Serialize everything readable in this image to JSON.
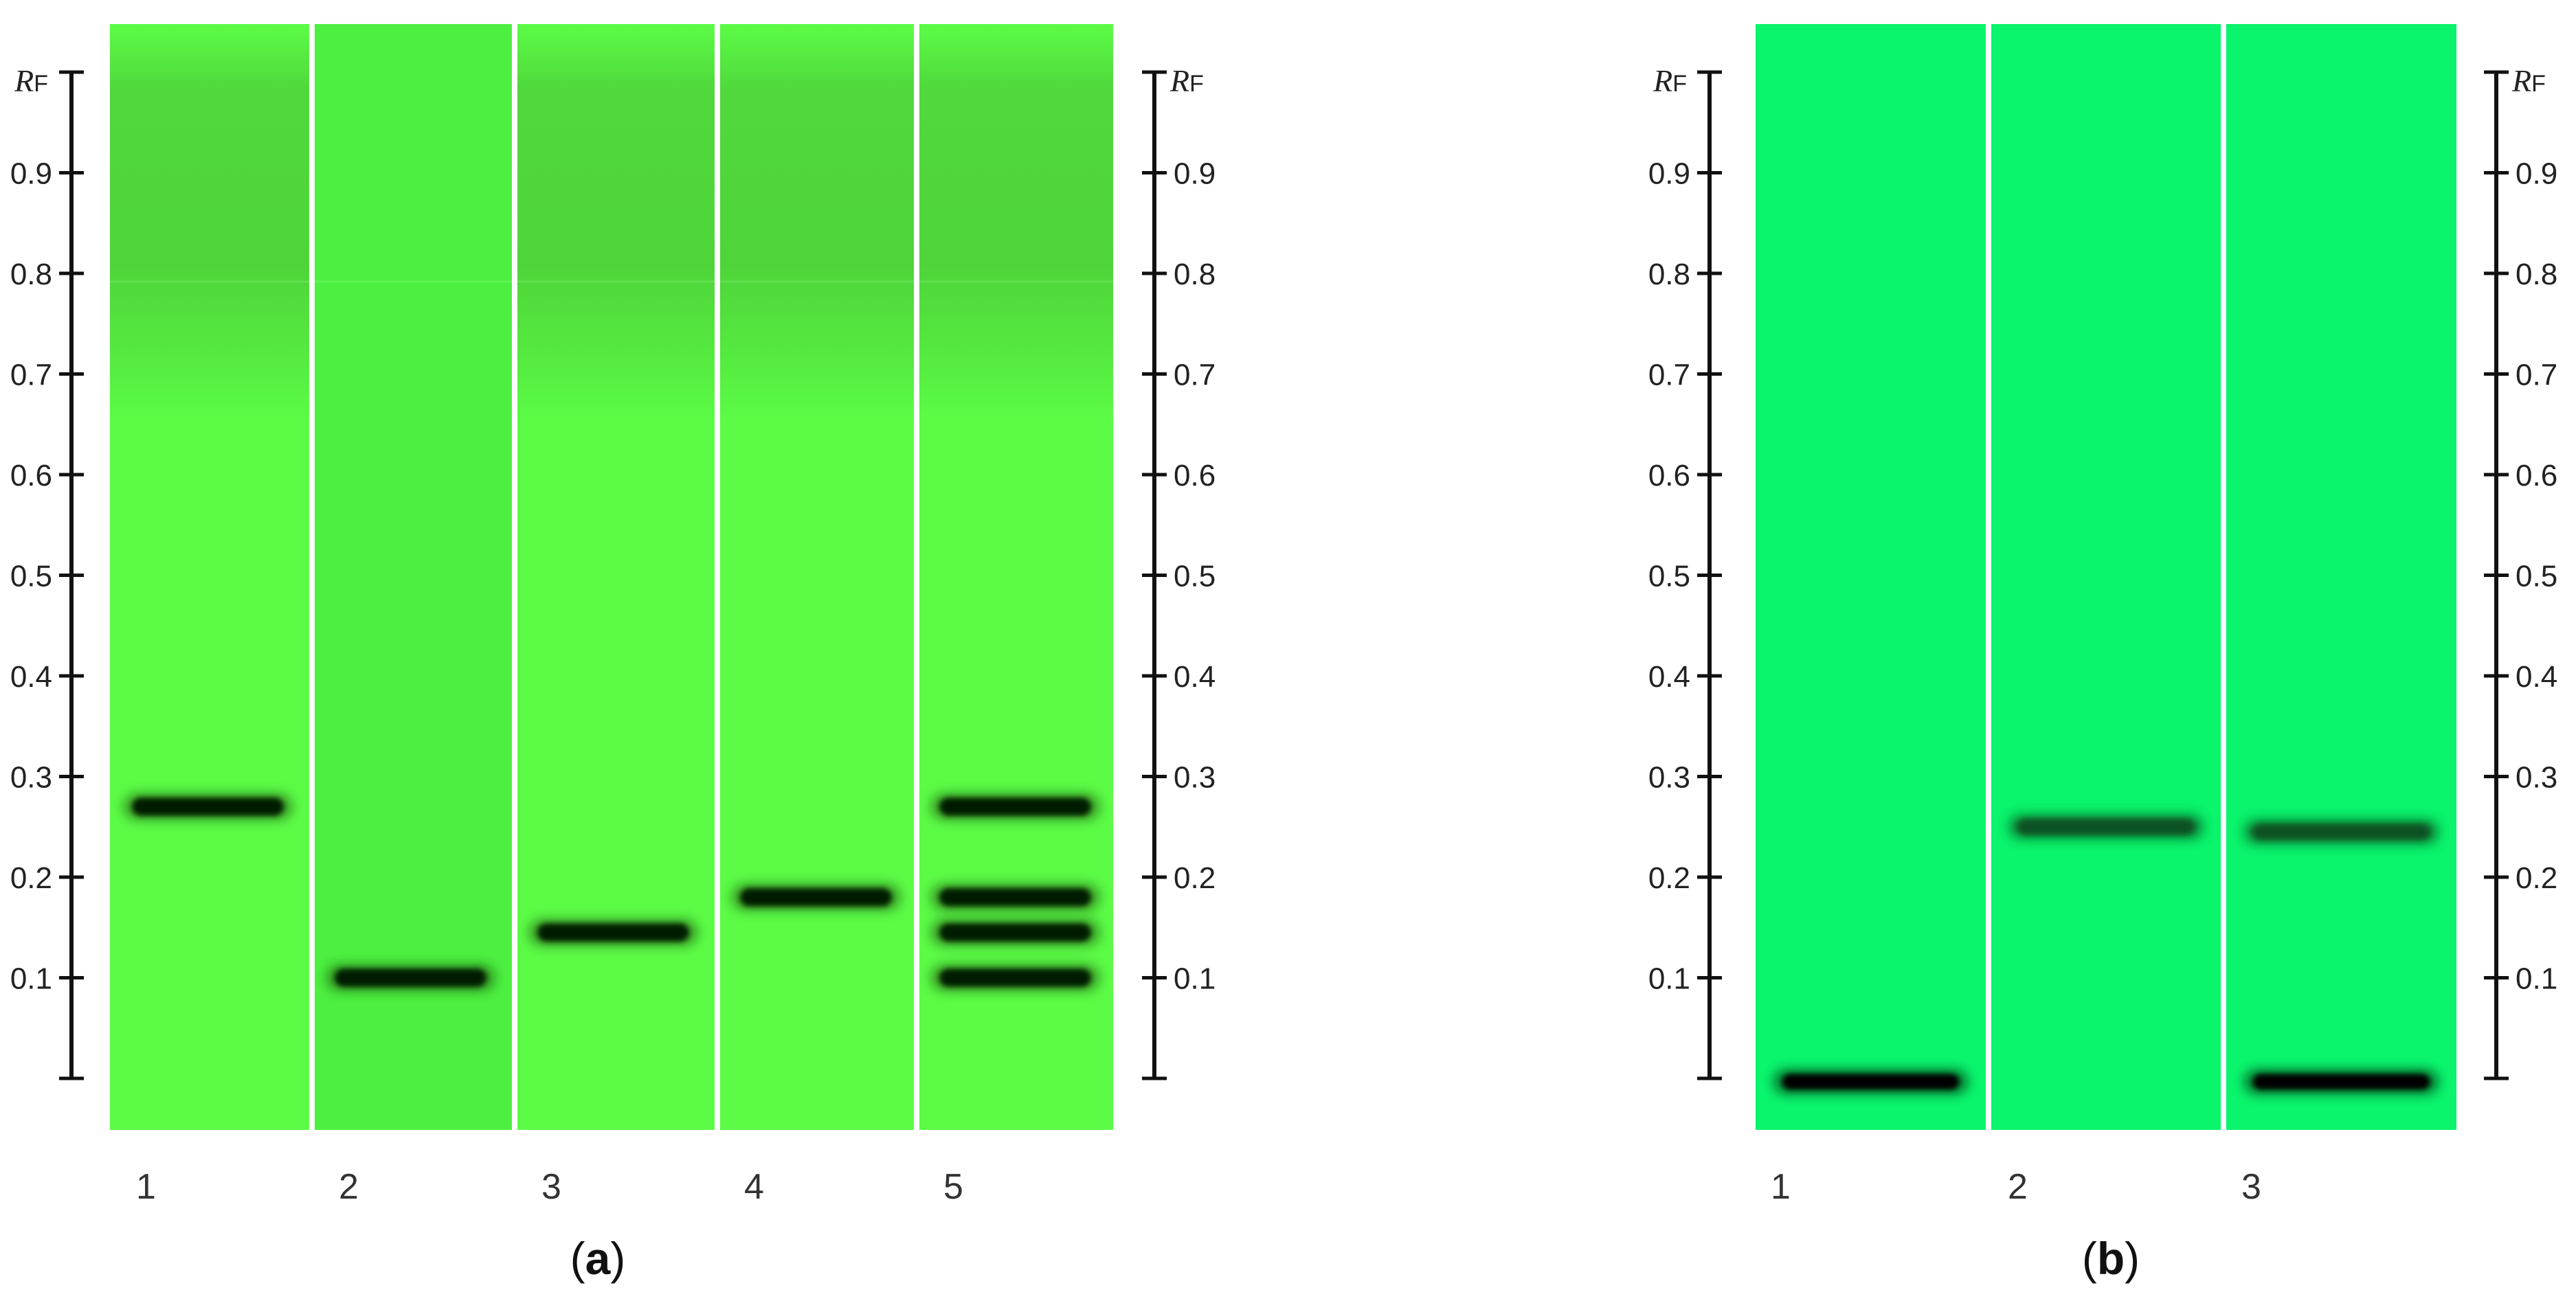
{
  "panel_a": {
    "caption": "(a)",
    "caption_letter": "a",
    "axis_symbol": "R",
    "axis_subscript": "F",
    "tick_labels": [
      "0.1",
      "0.2",
      "0.3",
      "0.4",
      "0.5",
      "0.6",
      "0.7",
      "0.8",
      "0.9"
    ],
    "background_top": "#52d73c",
    "background_bottom": "#5cfc46",
    "lane_colors": [
      "#5cfc46",
      "#4df040",
      "#5cfc46",
      "#5cfc46",
      "#5cfc46"
    ],
    "lanes": [
      {
        "label": "1",
        "bands_rf": [
          0.27
        ]
      },
      {
        "label": "2",
        "bands_rf": [
          0.1
        ]
      },
      {
        "label": "3",
        "bands_rf": [
          0.145
        ]
      },
      {
        "label": "4",
        "bands_rf": [
          0.18
        ]
      },
      {
        "label": "5",
        "bands_rf": [
          0.27,
          0.18,
          0.145,
          0.1
        ]
      }
    ]
  },
  "panel_b": {
    "caption": "(b)",
    "caption_letter": "b",
    "axis_symbol": "R",
    "axis_subscript": "F",
    "tick_labels": [
      "0.1",
      "0.2",
      "0.3",
      "0.4",
      "0.5",
      "0.6",
      "0.7",
      "0.8",
      "0.9"
    ],
    "background": "#0af46c",
    "lanes": [
      {
        "label": "1",
        "bands_rf": [
          0.0
        ]
      },
      {
        "label": "2",
        "bands_rf": [
          0.25
        ]
      },
      {
        "label": "3",
        "bands_rf": [
          0.245,
          0.0
        ]
      }
    ]
  }
}
